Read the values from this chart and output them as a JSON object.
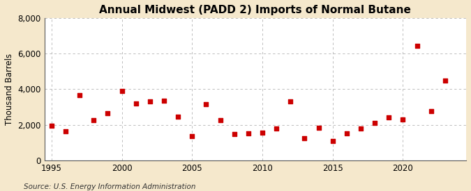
{
  "title": "Annual Midwest (PADD 2) Imports of Normal Butane",
  "ylabel": "Thousand Barrels",
  "source": "Source: U.S. Energy Information Administration",
  "background_color": "#f5e8cc",
  "plot_background": "#ffffff",
  "years": [
    1995,
    1996,
    1997,
    1998,
    1999,
    2000,
    2001,
    2002,
    2003,
    2004,
    2005,
    2006,
    2007,
    2008,
    2009,
    2010,
    2011,
    2012,
    2013,
    2014,
    2015,
    2016,
    2017,
    2018,
    2019,
    2020,
    2021,
    2022,
    2023
  ],
  "values": [
    1950,
    1620,
    3650,
    2280,
    2650,
    3900,
    3200,
    3300,
    3350,
    2450,
    1380,
    3150,
    2280,
    1480,
    1520,
    1560,
    1800,
    3300,
    1250,
    1850,
    1100,
    1530,
    1800,
    2100,
    2400,
    2300,
    6450,
    2750,
    4500
  ],
  "marker_color": "#cc0000",
  "marker_size": 18,
  "ylim": [
    0,
    8000
  ],
  "xlim": [
    1994.5,
    2024.5
  ],
  "yticks": [
    0,
    2000,
    4000,
    6000,
    8000
  ],
  "xticks": [
    1995,
    2000,
    2005,
    2010,
    2015,
    2020
  ],
  "grid_color": "#aaaaaa",
  "title_fontsize": 11,
  "axis_fontsize": 8.5,
  "source_fontsize": 7.5
}
